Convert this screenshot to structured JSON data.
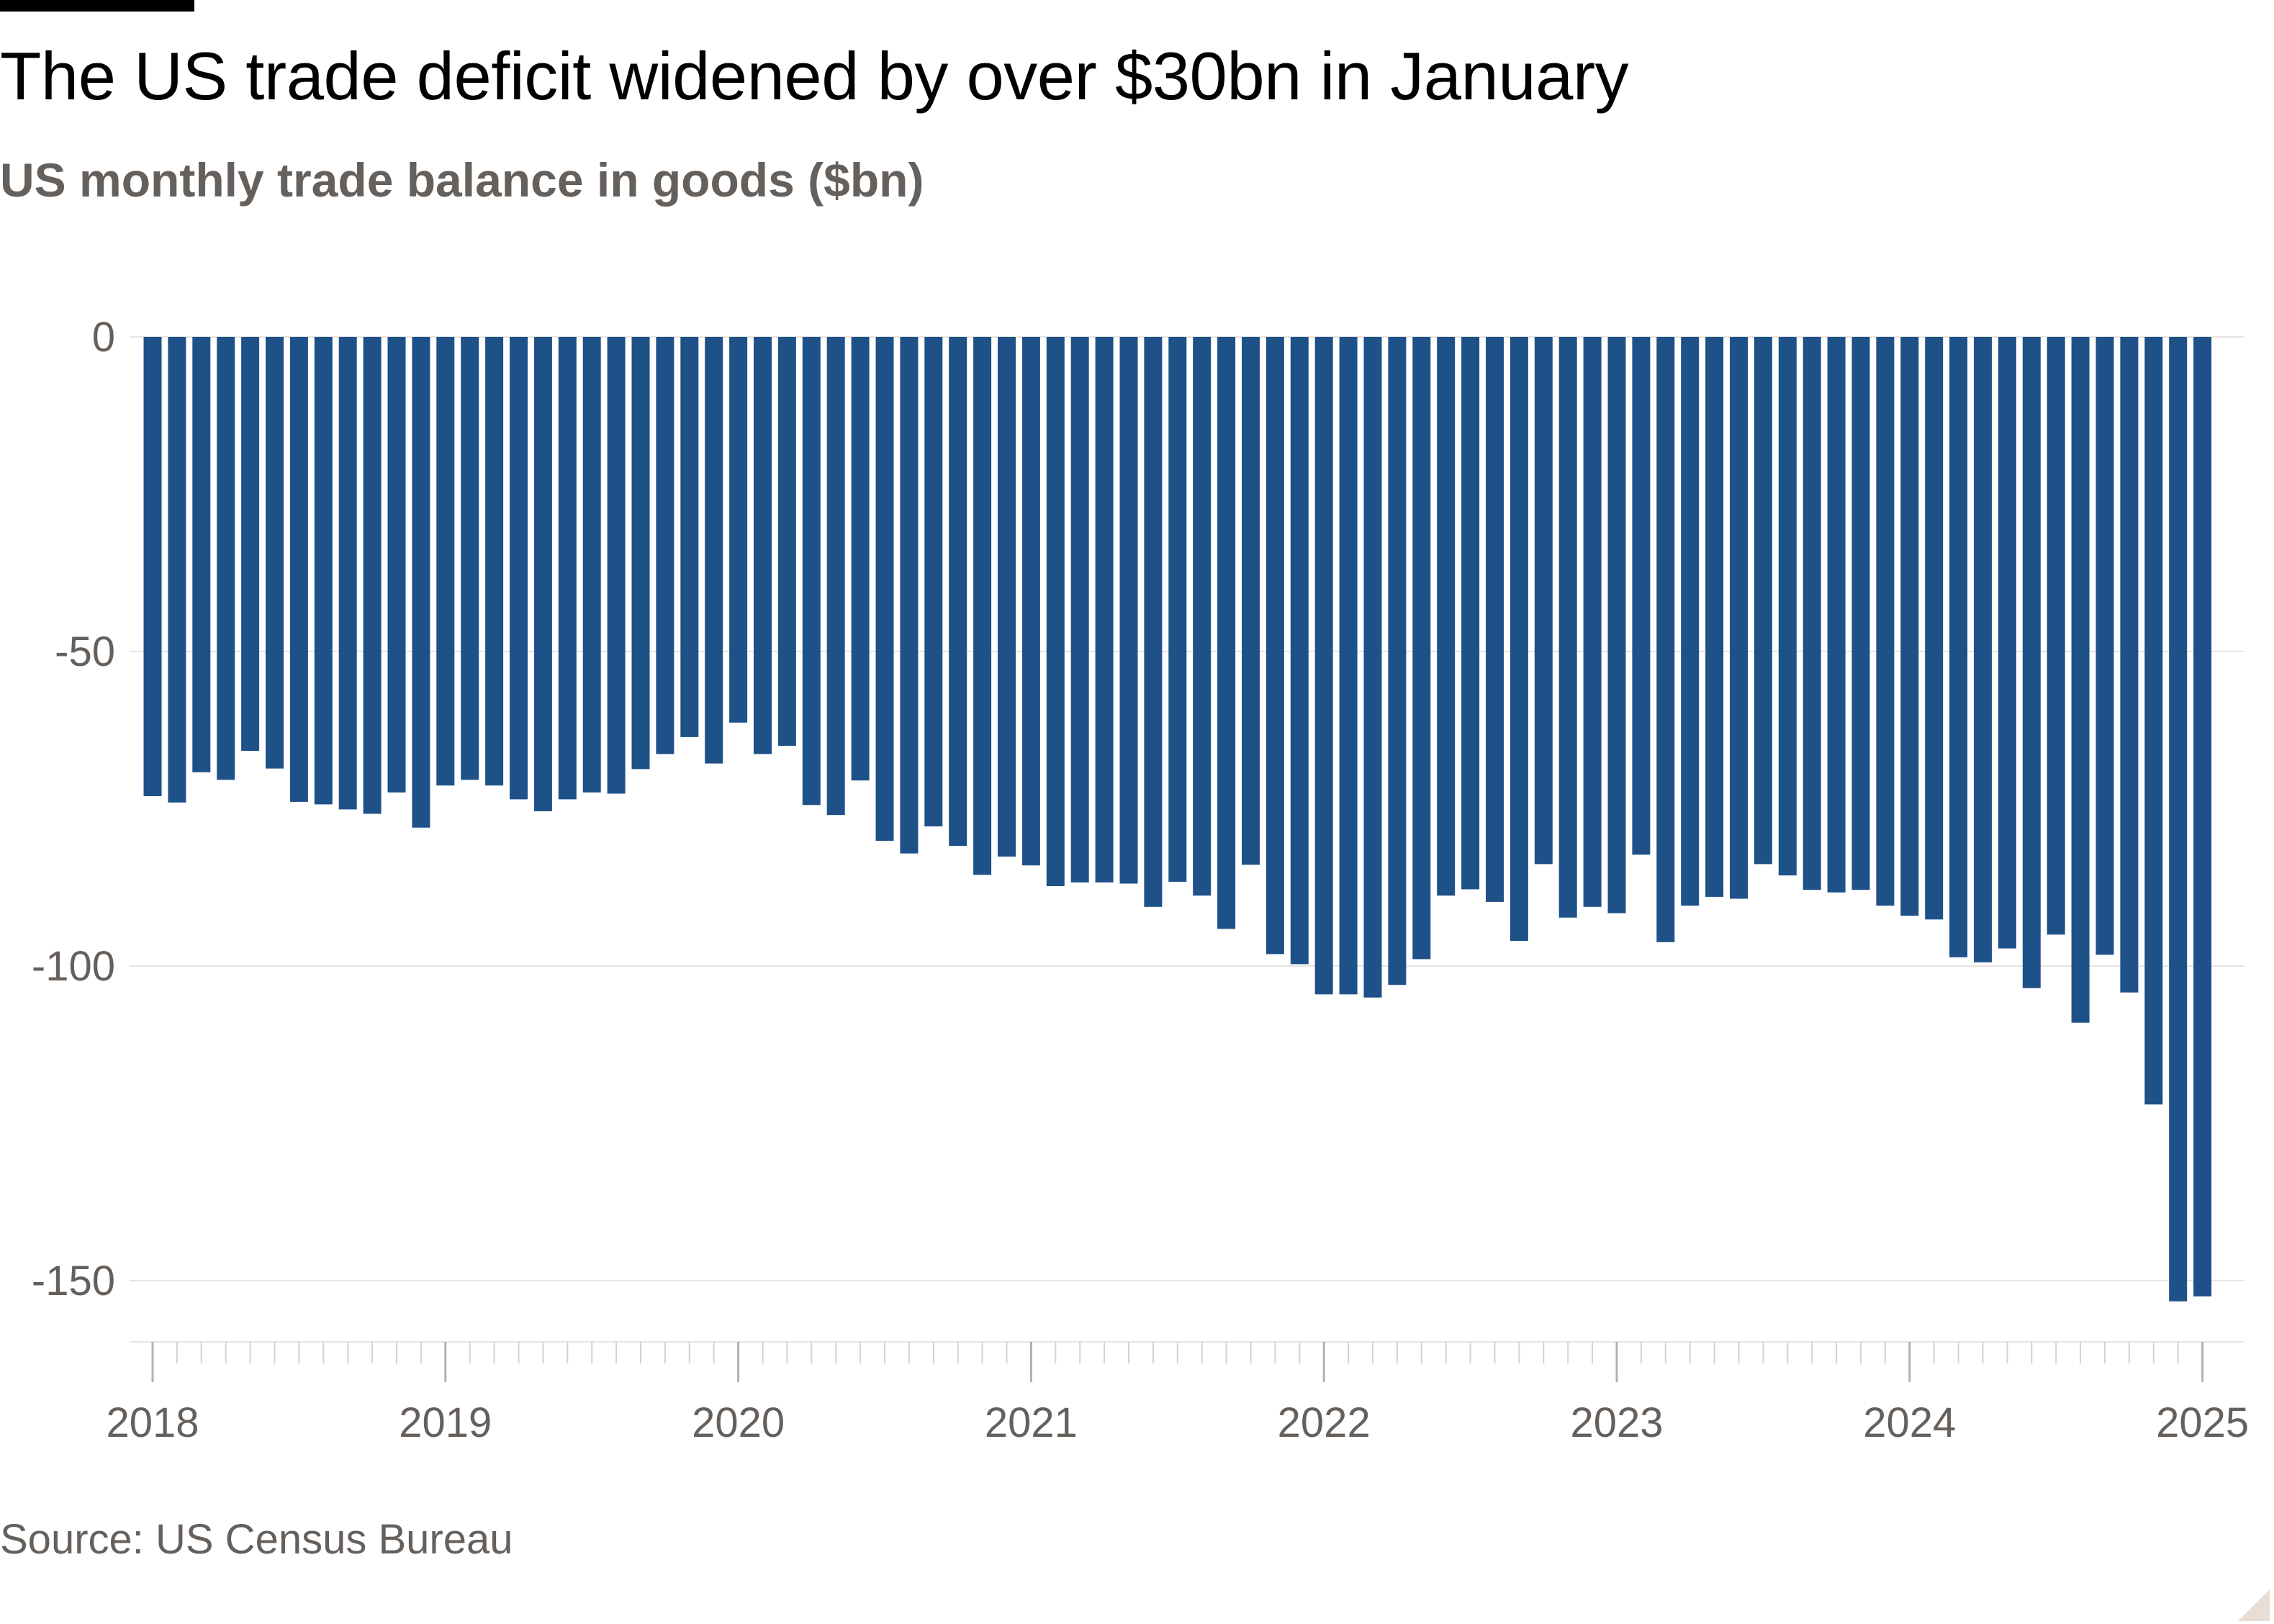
{
  "header": {
    "title": "The US trade deficit widened by over $30bn in January",
    "subtitle": "US monthly trade balance in goods ($bn)"
  },
  "footer": {
    "source": "Source: US Census Bureau"
  },
  "colors": {
    "bar": "#1f5189",
    "grid": "#e7e4e1",
    "text_muted": "#66605c"
  },
  "chart_data": {
    "type": "bar",
    "title": "The US trade deficit widened by over $30bn in January",
    "subtitle": "US monthly trade balance in goods ($bn)",
    "xlabel": "",
    "ylabel": "",
    "ylim": [
      -160,
      0
    ],
    "yticks": [
      0,
      -50,
      -100,
      -150
    ],
    "ytick_labels": [
      "0",
      "-50",
      "-100",
      "-150"
    ],
    "xtick_labels": [
      "2018",
      "2019",
      "2020",
      "2021",
      "2022",
      "2023",
      "2024",
      "2025"
    ],
    "grid": true,
    "legend": "none",
    "start": "2018-01",
    "end": "2025-01",
    "series": [
      {
        "values": [
          -73.0,
          -74.0,
          -69.2,
          -70.4,
          -65.8,
          -68.6,
          -73.9,
          -74.3,
          -75.1,
          -75.8,
          -72.4,
          -78.0,
          -71.3,
          -70.4,
          -71.3,
          -73.5,
          -75.4,
          -73.5,
          -72.4,
          -72.6,
          -68.7,
          -66.3,
          -63.6,
          -67.8,
          -61.3,
          -66.3,
          -65.0,
          -74.4,
          -76.0,
          -70.5,
          -80.1,
          -82.1,
          -77.8,
          -80.9,
          -85.5,
          -82.6,
          -84.0,
          -87.3,
          -86.7,
          -86.7,
          -86.9,
          -90.6,
          -86.6,
          -88.8,
          -94.1,
          -83.9,
          -98.1,
          -99.7,
          -104.5,
          -104.5,
          -105.0,
          -103.0,
          -98.9,
          -88.8,
          -87.8,
          -89.8,
          -96.0,
          -83.8,
          -92.3,
          -90.6,
          -91.6,
          -82.3,
          -96.2,
          -90.4,
          -89.0,
          -89.3,
          -83.8,
          -85.6,
          -87.9,
          -88.3,
          -87.9,
          -90.4,
          -92.0,
          -92.6,
          -98.6,
          -99.4,
          -97.2,
          -103.5,
          -95.0,
          -109.0,
          -98.2,
          -104.2,
          -122.0,
          -153.3,
          -152.5
        ]
      }
    ]
  }
}
